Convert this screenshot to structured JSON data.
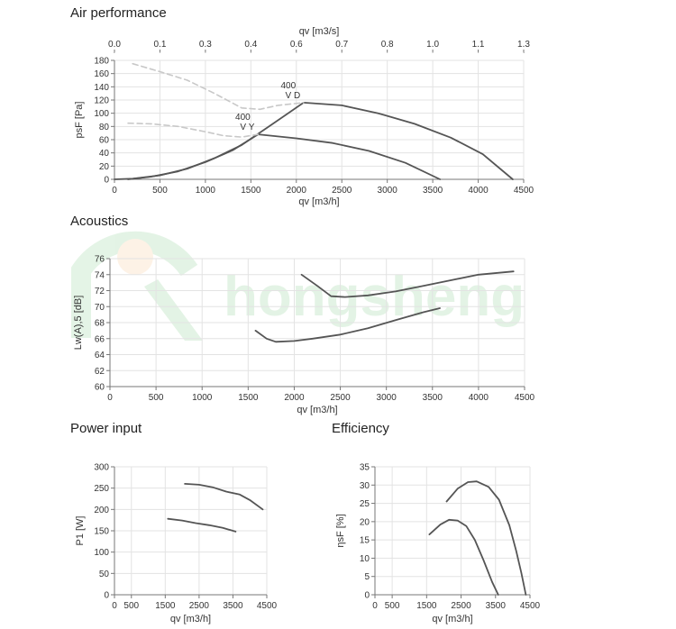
{
  "sections": {
    "air": "Air performance",
    "acoustics": "Acoustics",
    "power": "Power input",
    "efficiency": "Efficiency"
  },
  "watermark": {
    "text": "hongsheng",
    "color": "#2faa3c"
  },
  "colors": {
    "curve": "#555555",
    "dashed": "#c8c8c8",
    "grid": "#e3e3e3",
    "axis": "#777777"
  },
  "chart_data": [
    {
      "id": "air",
      "type": "line",
      "title": "Air performance",
      "xlabel": "qv [m3/h]",
      "ylabel": "psF [Pa]",
      "x2label": "qv [m3/s]",
      "xlim": [
        0,
        4500
      ],
      "ylim": [
        0,
        180
      ],
      "xticks": [
        0,
        500,
        1000,
        1500,
        2000,
        2500,
        3000,
        3500,
        4000,
        4500
      ],
      "yticks": [
        0,
        20,
        40,
        60,
        80,
        100,
        120,
        140,
        160,
        180
      ],
      "x2ticks": [
        "0.0",
        "0.1",
        "0.3",
        "0.4",
        "0.6",
        "0.7",
        "0.8",
        "1.0",
        "1.1",
        "1.3"
      ],
      "grid": true,
      "series": [
        {
          "name": "400 V D",
          "style": "solid",
          "x": [
            0,
            200,
            500,
            800,
            1100,
            1400,
            1700,
            2080,
            2500,
            2900,
            3300,
            3700,
            4050,
            4380
          ],
          "y": [
            0,
            1,
            6,
            16,
            32,
            52,
            80,
            116,
            112,
            100,
            84,
            63,
            38,
            0
          ]
        },
        {
          "name": "400 V Y",
          "style": "solid",
          "x": [
            150,
            400,
            700,
            1000,
            1300,
            1580,
            2000,
            2400,
            2800,
            3200,
            3580
          ],
          "y": [
            0,
            4,
            12,
            26,
            44,
            68,
            62,
            55,
            43,
            25,
            0
          ]
        },
        {
          "name": "",
          "style": "dashed",
          "x": [
            200,
            500,
            800,
            1100,
            1400,
            1600,
            1800,
            2080
          ],
          "y": [
            175,
            163,
            150,
            130,
            108,
            106,
            112,
            116
          ]
        },
        {
          "name": "",
          "style": "dashed",
          "x": [
            150,
            400,
            700,
            1000,
            1200,
            1400,
            1580
          ],
          "y": [
            85,
            84,
            80,
            72,
            66,
            64,
            68
          ]
        }
      ]
    },
    {
      "id": "acoustics",
      "type": "line",
      "title": "Acoustics",
      "xlabel": "qv [m3/h]",
      "ylabel": "Lw(A),5 [dB]",
      "xlim": [
        0,
        4500
      ],
      "ylim": [
        60,
        76
      ],
      "xticks": [
        0,
        500,
        1000,
        1500,
        2000,
        2500,
        3000,
        3500,
        4000,
        4500
      ],
      "yticks": [
        60,
        62,
        64,
        66,
        68,
        70,
        72,
        74,
        76
      ],
      "grid": true,
      "series": [
        {
          "name": "",
          "style": "solid",
          "x": [
            2080,
            2250,
            2400,
            2550,
            2800,
            3100,
            3400,
            3700,
            4000,
            4380
          ],
          "y": [
            74,
            72.6,
            71.3,
            71.2,
            71.4,
            71.9,
            72.6,
            73.3,
            74,
            74.4
          ]
        },
        {
          "name": "",
          "style": "solid",
          "x": [
            1580,
            1700,
            1800,
            2000,
            2200,
            2500,
            2800,
            3100,
            3400,
            3580
          ],
          "y": [
            67,
            66,
            65.6,
            65.7,
            66,
            66.5,
            67.3,
            68.3,
            69.3,
            69.8
          ]
        }
      ]
    },
    {
      "id": "power",
      "type": "line",
      "title": "Power input",
      "xlabel": "qv [m3/h]",
      "ylabel": "P1 [W]",
      "xlim": [
        0,
        4500
      ],
      "ylim": [
        0,
        300
      ],
      "xticks": [
        0,
        500,
        1500,
        2500,
        3500,
        4500
      ],
      "yticks": [
        0,
        50,
        100,
        150,
        200,
        250,
        300
      ],
      "grid": true,
      "series": [
        {
          "name": "",
          "style": "solid",
          "x": [
            2080,
            2500,
            2900,
            3300,
            3700,
            4000,
            4380
          ],
          "y": [
            260,
            258,
            252,
            242,
            235,
            222,
            200
          ]
        },
        {
          "name": "",
          "style": "solid",
          "x": [
            1580,
            2000,
            2400,
            2800,
            3200,
            3580
          ],
          "y": [
            178,
            174,
            168,
            163,
            157,
            148
          ]
        }
      ]
    },
    {
      "id": "efficiency",
      "type": "line",
      "title": "Efficiency",
      "xlabel": "qv [m3/h]",
      "ylabel": "ηsF [%]",
      "xlim": [
        0,
        4500
      ],
      "ylim": [
        0,
        35
      ],
      "xticks": [
        0,
        500,
        1500,
        2500,
        3500,
        4500
      ],
      "yticks": [
        0,
        5,
        10,
        15,
        20,
        25,
        30,
        35
      ],
      "grid": true,
      "series": [
        {
          "name": "",
          "style": "solid",
          "x": [
            2080,
            2400,
            2700,
            2950,
            3300,
            3600,
            3900,
            4100,
            4250,
            4380
          ],
          "y": [
            25.5,
            29,
            30.8,
            31,
            29.5,
            26,
            19,
            12,
            6,
            0
          ]
        },
        {
          "name": "",
          "style": "solid",
          "x": [
            1580,
            1900,
            2150,
            2400,
            2650,
            2900,
            3150,
            3400,
            3580
          ],
          "y": [
            16.5,
            19.2,
            20.5,
            20.3,
            18.8,
            15,
            9.5,
            3.5,
            0
          ]
        }
      ]
    }
  ]
}
